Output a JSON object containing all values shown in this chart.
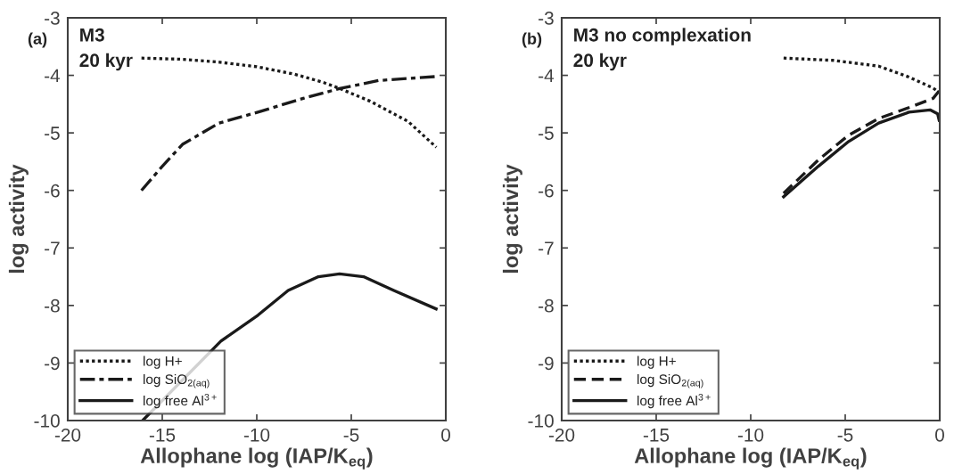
{
  "chart_data": [
    {
      "type": "line",
      "xlabel": "Allophane log (IAP/K$_{eq}$)",
      "ylabel": "log activity",
      "annotations": [
        "(a)",
        "M3\n20 kyr"
      ],
      "xlim": [
        -20,
        0
      ],
      "xticks": [
        -20,
        -15,
        -10,
        -5,
        0
      ],
      "ylim": [
        -10,
        -3
      ],
      "yticks": [
        -10,
        -9,
        -8,
        -7,
        -6,
        -5,
        -4,
        -3
      ],
      "grid": false,
      "legend": "bottom left",
      "marker": "none",
      "series": [
        {
          "name": "log H+",
          "color": "#1a1a1a",
          "line_style": "dotted",
          "x": [
            -16.1,
            -14,
            -12,
            -10,
            -8,
            -6.5,
            -5.6,
            -4,
            -2,
            -0.5
          ],
          "values": [
            -3.7,
            -3.72,
            -3.77,
            -3.85,
            -3.98,
            -4.12,
            -4.23,
            -4.45,
            -4.8,
            -5.25
          ]
        },
        {
          "name": "log SiO$_{2(aq)}$",
          "color": "#1a1a1a",
          "line_style": "dashdot",
          "x": [
            -16.1,
            -15.05,
            -13.93,
            -12.0,
            -9.94,
            -7.54,
            -5.62,
            -3.55,
            -0.51
          ],
          "values": [
            -6.0,
            -5.6,
            -5.2,
            -4.83,
            -4.64,
            -4.4,
            -4.23,
            -4.09,
            -4.02
          ]
        },
        {
          "name": "log free Al$^{3+}$",
          "color": "#1a1a1a",
          "line_style": "solid",
          "x": [
            -16.04,
            -11.9,
            -9.94,
            -8.34,
            -6.74,
            -5.62,
            -4.35,
            -2.75,
            -0.51
          ],
          "values": [
            -10.0,
            -8.62,
            -8.17,
            -7.74,
            -7.5,
            -7.45,
            -7.5,
            -7.74,
            -8.06
          ]
        }
      ]
    },
    {
      "type": "line",
      "xlabel": "Allophane log (IAP/K$_{eq}$)",
      "ylabel": "log activity",
      "annotations": [
        "(b)",
        "M3 no complexation\n20 kyr"
      ],
      "xlim": [
        -20,
        0
      ],
      "xticks": [
        -20,
        -15,
        -10,
        -5,
        0
      ],
      "ylim": [
        -10,
        -3
      ],
      "yticks": [
        -10,
        -9,
        -8,
        -7,
        -6,
        -5,
        -4,
        -3
      ],
      "grid": false,
      "legend": "bottom left",
      "marker": "none",
      "series": [
        {
          "name": "log H+",
          "color": "#1a1a1a",
          "line_style": "dotted",
          "x": [
            -8.26,
            -5.62,
            -3.23,
            -1.63,
            -0.35,
            -0.03
          ],
          "values": [
            -3.7,
            -3.74,
            -3.84,
            -4.03,
            -4.22,
            -4.3
          ]
        },
        {
          "name": "log SiO$_{2(aq)}$",
          "color": "#1a1a1a",
          "line_style": "dashed",
          "x": [
            -8.26,
            -6.42,
            -4.82,
            -3.23,
            -1.63,
            -0.35,
            -0.03
          ],
          "values": [
            -6.05,
            -5.47,
            -5.04,
            -4.75,
            -4.56,
            -4.4,
            -4.27
          ]
        },
        {
          "name": "log free Al$^{3+}$",
          "color": "#1a1a1a",
          "line_style": "solid",
          "x": [
            -8.26,
            -6.42,
            -4.82,
            -3.23,
            -1.63,
            -0.51,
            -0.11,
            -0.03
          ],
          "values": [
            -6.11,
            -5.58,
            -5.15,
            -4.83,
            -4.64,
            -4.6,
            -4.67,
            -4.78
          ]
        }
      ]
    }
  ]
}
